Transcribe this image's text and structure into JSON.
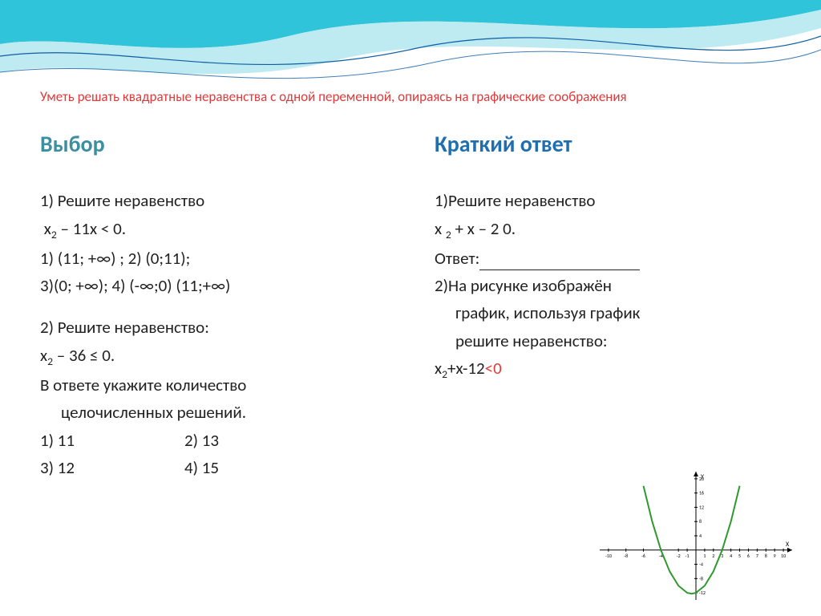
{
  "background": {
    "wave_top_color": "#2fc4d9",
    "wave_mid_color": "#b7e8ef",
    "wave_line_color": "#0d5ea6",
    "page_bg": "#ffffff"
  },
  "title": {
    "text": "Уметь решать квадратные неравенства с одной переменной, опираясь на графические соображения",
    "color": "#e03a3a",
    "fontsize": 17
  },
  "left": {
    "header": "Выбор",
    "header_color": "#3a8fa0",
    "q1_prompt": "1) Решите неравенство",
    "q1_ineq_a": "x",
    "q1_ineq_sub": "2",
    "q1_ineq_b": " – 11x < 0.",
    "q1_opt_line1": "1) (11; +∞) ; 2) (0;11);",
    "q1_opt_line2": "3)(0; +∞); 4) (-∞;0) (11;+∞)",
    "q2_prompt": "2) Решите неравенство:",
    "q2_ineq_a": "x",
    "q2_ineq_sub": "2",
    "q2_ineq_b": " – 36 ≤ 0.",
    "q2_note_l1": "В ответе укажите количество",
    "q2_note_l2": "целочисленных решений.",
    "q2_opt1": "1) 11",
    "q2_opt2": "2) 13",
    "q2_opt3": "3) 12",
    "q2_opt4": "4) 15"
  },
  "right": {
    "header": "Краткий ответ",
    "header_color": "#1f6fb0",
    "q1_prompt": "1)Решите неравенство",
    "q1_ineq_a": "x ",
    "q1_ineq_sub": "2",
    "q1_ineq_b": " + x – 2  0.",
    "q1_answer_label": "Ответ:",
    "q2_l1": "2)На рисунке изображён",
    "q2_l2": "график, используя график",
    "q2_l3": "решите неравенство:",
    "q2_ineq_a": "x",
    "q2_ineq_sub": "2",
    "q2_ineq_b": "+x-12",
    "q2_ineq_red": "<0"
  },
  "chart": {
    "type": "line",
    "curve_color": "#2e9a2e",
    "axis_color": "#000000",
    "bg": "#ffffff",
    "x_ticks": [
      -10,
      -8,
      -6,
      -4,
      -2,
      -1,
      1,
      2,
      3,
      4,
      5,
      6,
      7,
      8,
      9,
      10
    ],
    "y_ticks_pos": [
      4,
      8,
      12,
      16,
      20
    ],
    "y_ticks_neg": [
      -4,
      -8,
      -12
    ],
    "xlim": [
      -11,
      11
    ],
    "ylim": [
      -14,
      22
    ],
    "line_width": 2,
    "label_fontsize": 6,
    "x_label": "X",
    "y_label": "Y",
    "points": [
      [
        -6,
        18
      ],
      [
        -5,
        8
      ],
      [
        -4,
        0
      ],
      [
        -3,
        -6
      ],
      [
        -2,
        -10
      ],
      [
        -1,
        -12
      ],
      [
        -0.5,
        -12.25
      ],
      [
        0,
        -12
      ],
      [
        1,
        -10
      ],
      [
        2,
        -6
      ],
      [
        3,
        0
      ],
      [
        4,
        8
      ],
      [
        5,
        18
      ]
    ]
  }
}
